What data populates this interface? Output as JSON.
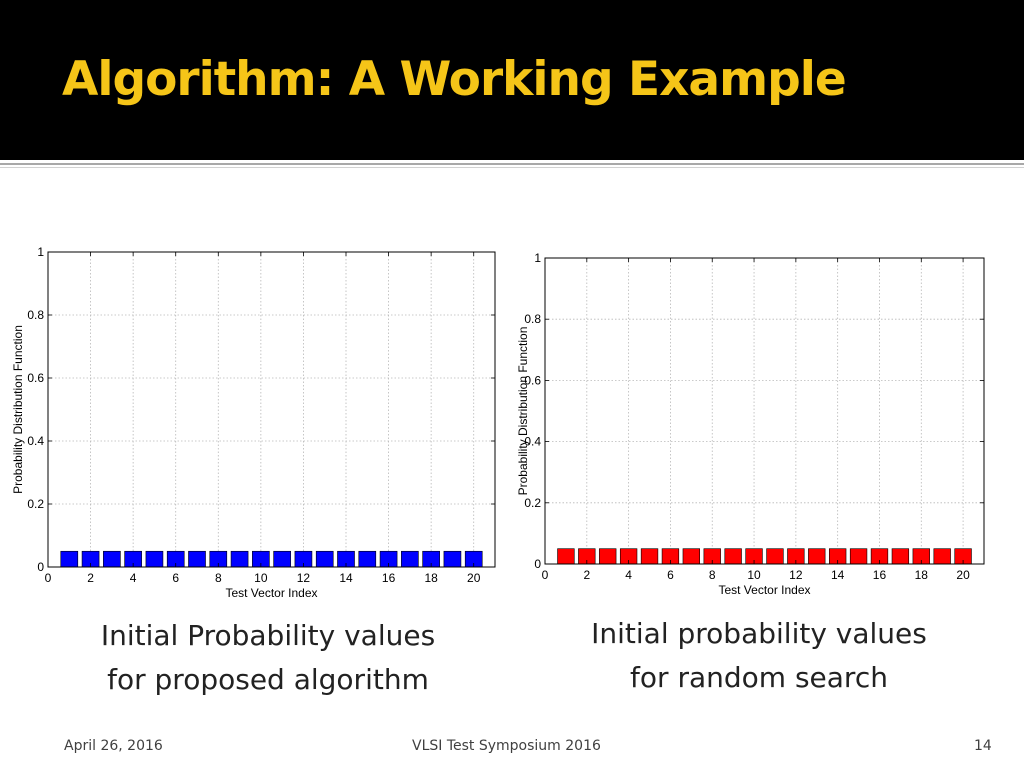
{
  "slide": {
    "title": "Algorithm: A Working Example",
    "title_color": "#f5c518",
    "header_background": "#000000"
  },
  "captions": {
    "left_line1": "Initial Probability values",
    "left_line2": "for proposed algorithm",
    "right_line1": "Initial probability values",
    "right_line2": "for random search"
  },
  "footer": {
    "date": "April 26, 2016",
    "event": "VLSI Test Symposium 2016",
    "page_number": "14"
  },
  "chart_data": [
    {
      "type": "bar",
      "xlabel": "Test Vector Index",
      "ylabel": "Probability Distribution Function",
      "xlim": [
        0,
        21
      ],
      "ylim": [
        0,
        1
      ],
      "x_ticks": [
        0,
        2,
        4,
        6,
        8,
        10,
        12,
        14,
        16,
        18,
        20
      ],
      "y_ticks": [
        0,
        0.2,
        0.4,
        0.6,
        0.8,
        1
      ],
      "y_tick_labels": [
        "0",
        "0.2",
        "0.4",
        "0.6",
        "0.8",
        "1"
      ],
      "grid": true,
      "bar_color": "#0000ff",
      "categories": [
        1,
        2,
        3,
        4,
        5,
        6,
        7,
        8,
        9,
        10,
        11,
        12,
        13,
        14,
        15,
        16,
        17,
        18,
        19,
        20
      ],
      "values": [
        0.05,
        0.05,
        0.05,
        0.05,
        0.05,
        0.05,
        0.05,
        0.05,
        0.05,
        0.05,
        0.05,
        0.05,
        0.05,
        0.05,
        0.05,
        0.05,
        0.05,
        0.05,
        0.05,
        0.05
      ]
    },
    {
      "type": "bar",
      "xlabel": "Test Vector Index",
      "ylabel": "Probability Distribution Function",
      "xlim": [
        0,
        21
      ],
      "ylim": [
        0,
        1
      ],
      "x_ticks": [
        0,
        2,
        4,
        6,
        8,
        10,
        12,
        14,
        16,
        18,
        20
      ],
      "y_ticks": [
        0,
        0.2,
        0.4,
        0.6,
        0.8,
        1
      ],
      "y_tick_labels": [
        "0",
        "0.2",
        "0.4",
        "0.6",
        "0.8",
        "1"
      ],
      "grid": true,
      "bar_color": "#ff0000",
      "categories": [
        1,
        2,
        3,
        4,
        5,
        6,
        7,
        8,
        9,
        10,
        11,
        12,
        13,
        14,
        15,
        16,
        17,
        18,
        19,
        20
      ],
      "values": [
        0.05,
        0.05,
        0.05,
        0.05,
        0.05,
        0.05,
        0.05,
        0.05,
        0.05,
        0.05,
        0.05,
        0.05,
        0.05,
        0.05,
        0.05,
        0.05,
        0.05,
        0.05,
        0.05,
        0.05
      ]
    }
  ]
}
